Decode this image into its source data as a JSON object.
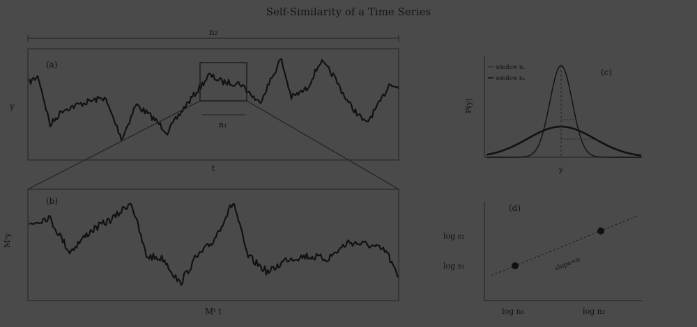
{
  "title": "Self-Similarity of a Time Series",
  "panels": {
    "a": {
      "label": "(a)",
      "top_scale": "n₂",
      "inner_scale": "n₁",
      "ylabel": "y",
      "xlabel": "t"
    },
    "b": {
      "label": "(b)",
      "ylabel": "Mˢy",
      "xlabel": "Mᵗ t"
    },
    "c": {
      "label": "(c)",
      "ylabel": "P(y)",
      "xlabel": "y",
      "legend": [
        "window n₁",
        "window n₂"
      ]
    },
    "d": {
      "label": "(d)",
      "yticks": [
        "log s₂",
        "log s₁"
      ],
      "xticks": [
        "log n₁",
        "log n₂"
      ],
      "slope_label": "slope=α"
    }
  },
  "colors": {
    "background": "#4a4a4a",
    "ink": "#111111",
    "box": "#2a2a2a"
  }
}
